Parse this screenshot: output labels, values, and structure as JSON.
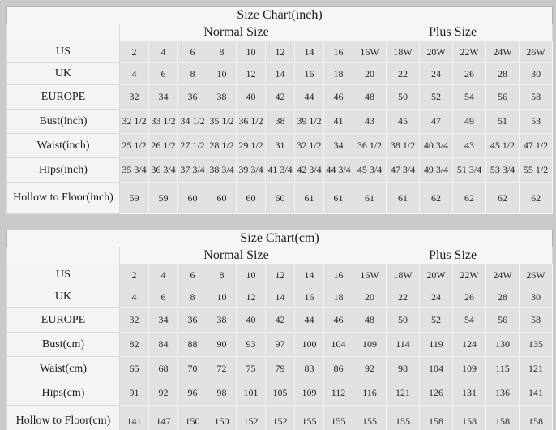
{
  "page": {
    "background": "#c9c9c9"
  },
  "chart_data": [
    {
      "type": "table",
      "title": "Size Chart(inch)",
      "column_groups": [
        {
          "label": "Normal Size",
          "span": 8
        },
        {
          "label": "Plus Size",
          "span": 6
        }
      ],
      "rows": [
        {
          "label": "US",
          "values": [
            "2",
            "4",
            "6",
            "8",
            "10",
            "12",
            "14",
            "16",
            "16W",
            "18W",
            "20W",
            "22W",
            "24W",
            "26W"
          ]
        },
        {
          "label": "UK",
          "values": [
            "4",
            "6",
            "8",
            "10",
            "12",
            "14",
            "16",
            "18",
            "20",
            "22",
            "24",
            "26",
            "28",
            "30"
          ]
        },
        {
          "label": "EUROPE",
          "values": [
            "32",
            "34",
            "36",
            "38",
            "40",
            "42",
            "44",
            "46",
            "48",
            "50",
            "52",
            "54",
            "56",
            "58"
          ]
        },
        {
          "label": "Bust(inch)",
          "values": [
            "32 1/2",
            "33 1/2",
            "34 1/2",
            "35 1/2",
            "36 1/2",
            "38",
            "39 1/2",
            "41",
            "43",
            "45",
            "47",
            "49",
            "51",
            "53"
          ]
        },
        {
          "label": "Waist(inch)",
          "values": [
            "25 1/2",
            "26 1/2",
            "27 1/2",
            "28 1/2",
            "29 1/2",
            "31",
            "32 1/2",
            "34",
            "36 1/2",
            "38 1/2",
            "40 3/4",
            "43",
            "45 1/2",
            "47 1/2"
          ]
        },
        {
          "label": "Hips(inch)",
          "values": [
            "35 3/4",
            "36 3/4",
            "37 3/4",
            "38 3/4",
            "39 3/4",
            "41 3/4",
            "42 3/4",
            "44 3/4",
            "45 3/4",
            "47 3/4",
            "49 3/4",
            "51 3/4",
            "53 3/4",
            "55 1/2"
          ]
        },
        {
          "label": "Hollow to Floor(inch)",
          "values": [
            "59",
            "59",
            "60",
            "60",
            "60",
            "60",
            "61",
            "61",
            "61",
            "61",
            "62",
            "62",
            "62",
            "62"
          ]
        }
      ]
    },
    {
      "type": "table",
      "title": "Size Chart(cm)",
      "column_groups": [
        {
          "label": "Normal Size",
          "span": 8
        },
        {
          "label": "Plus Size",
          "span": 6
        }
      ],
      "rows": [
        {
          "label": "US",
          "values": [
            "2",
            "4",
            "6",
            "8",
            "10",
            "12",
            "14",
            "16",
            "16W",
            "18W",
            "20W",
            "22W",
            "24W",
            "26W"
          ]
        },
        {
          "label": "UK",
          "values": [
            "4",
            "6",
            "8",
            "10",
            "12",
            "14",
            "16",
            "18",
            "20",
            "22",
            "24",
            "26",
            "28",
            "30"
          ]
        },
        {
          "label": "EUROPE",
          "values": [
            "32",
            "34",
            "36",
            "38",
            "40",
            "42",
            "44",
            "46",
            "48",
            "50",
            "52",
            "54",
            "56",
            "58"
          ]
        },
        {
          "label": "Bust(cm)",
          "values": [
            "82",
            "84",
            "88",
            "90",
            "93",
            "97",
            "100",
            "104",
            "109",
            "114",
            "119",
            "124",
            "130",
            "135"
          ]
        },
        {
          "label": "Waist(cm)",
          "values": [
            "65",
            "68",
            "70",
            "72",
            "75",
            "79",
            "83",
            "86",
            "92",
            "98",
            "104",
            "109",
            "115",
            "121"
          ]
        },
        {
          "label": "Hips(cm)",
          "values": [
            "91",
            "92",
            "96",
            "98",
            "101",
            "105",
            "109",
            "112",
            "116",
            "121",
            "126",
            "131",
            "136",
            "141"
          ]
        },
        {
          "label": "Hollow to Floor(cm)",
          "values": [
            "141",
            "147",
            "150",
            "150",
            "152",
            "152",
            "155",
            "155",
            "155",
            "155",
            "158",
            "158",
            "158",
            "158"
          ]
        }
      ]
    }
  ]
}
